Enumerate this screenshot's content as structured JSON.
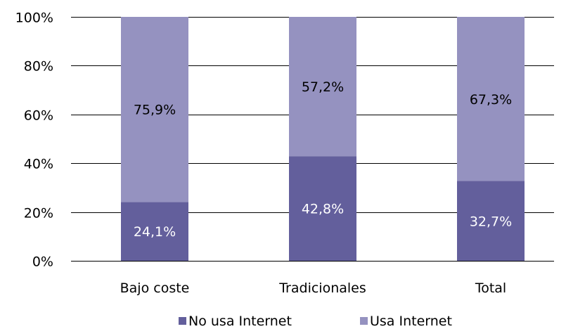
{
  "chart_data": {
    "type": "bar",
    "stacked": true,
    "categories": [
      "Bajo coste",
      "Tradicionales",
      "Total"
    ],
    "series": [
      {
        "name": "No usa Internet",
        "values": [
          24.1,
          42.8,
          32.7
        ],
        "labels": [
          "24,1%",
          "42,8%",
          "32,7%"
        ],
        "color": "#635F9C",
        "label_color": "#FFFFFF"
      },
      {
        "name": "Usa Internet",
        "values": [
          75.9,
          57.2,
          67.3
        ],
        "labels": [
          "75,9%",
          "57,2%",
          "67,3%"
        ],
        "color": "#9592C0",
        "label_color": "#000000"
      }
    ],
    "ylim": [
      0,
      100
    ],
    "yticks": [
      0,
      20,
      40,
      60,
      80,
      100
    ],
    "ytick_labels": [
      "0%",
      "20%",
      "40%",
      "60%",
      "80%",
      "100%"
    ],
    "grid": true,
    "legend_position": "bottom",
    "title": "",
    "xlabel": "",
    "ylabel": ""
  }
}
